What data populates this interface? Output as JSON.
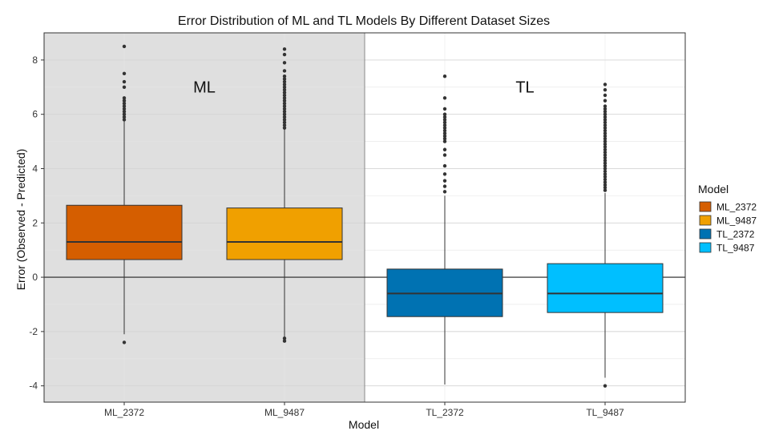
{
  "chart_data": {
    "type": "box",
    "title": "Error Distribution of ML and TL Models By Different Dataset Sizes",
    "xlabel": "Model",
    "ylabel": "Error (Observed - Predicted)",
    "ylim": [
      -4.6,
      9.0
    ],
    "yticks": [
      -4,
      -2,
      0,
      2,
      4,
      6,
      8
    ],
    "categories": [
      "ML_2372",
      "ML_9487",
      "TL_2372",
      "TL_9487"
    ],
    "panels": [
      {
        "label": "ML",
        "categories": [
          "ML_2372",
          "ML_9487"
        ],
        "shaded": true
      },
      {
        "label": "TL",
        "categories": [
          "TL_2372",
          "TL_9487"
        ],
        "shaded": false
      }
    ],
    "reference_line": 0,
    "series": [
      {
        "name": "ML_2372",
        "color": "#D55E00",
        "q1": 0.65,
        "median": 1.3,
        "q3": 2.65,
        "whisker_low": -2.1,
        "whisker_high": 5.75,
        "outliers": [
          -2.4,
          5.8,
          5.9,
          6.0,
          6.1,
          6.2,
          6.3,
          6.4,
          6.5,
          6.6,
          7.0,
          7.2,
          7.5,
          8.5
        ]
      },
      {
        "name": "ML_9487",
        "color": "#F0A000",
        "q1": 0.65,
        "median": 1.3,
        "q3": 2.55,
        "whisker_low": -2.2,
        "whisker_high": 5.45,
        "outliers": [
          -2.25,
          -2.35,
          5.5,
          5.6,
          5.7,
          5.8,
          5.9,
          6.0,
          6.1,
          6.2,
          6.3,
          6.4,
          6.5,
          6.6,
          6.7,
          6.8,
          6.9,
          7.0,
          7.1,
          7.2,
          7.3,
          7.4,
          7.6,
          7.9,
          8.2,
          8.4
        ]
      },
      {
        "name": "TL_2372",
        "color": "#0072B2",
        "q1": -1.45,
        "median": -0.6,
        "q3": 0.3,
        "whisker_low": -3.95,
        "whisker_high": 3.0,
        "outliers": [
          3.15,
          3.35,
          3.55,
          3.8,
          4.1,
          4.5,
          4.7,
          5.0,
          5.1,
          5.2,
          5.3,
          5.4,
          5.5,
          5.6,
          5.7,
          5.8,
          5.9,
          6.0,
          6.2,
          6.6,
          7.4
        ]
      },
      {
        "name": "TL_9487",
        "color": "#00BFFF",
        "q1": -1.3,
        "median": -0.6,
        "q3": 0.5,
        "whisker_low": -3.7,
        "whisker_high": 3.1,
        "outliers": [
          -4.0,
          3.2,
          3.3,
          3.4,
          3.5,
          3.6,
          3.7,
          3.8,
          3.9,
          4.0,
          4.1,
          4.2,
          4.3,
          4.4,
          4.5,
          4.6,
          4.7,
          4.8,
          4.9,
          5.0,
          5.1,
          5.2,
          5.3,
          5.4,
          5.5,
          5.6,
          5.7,
          5.8,
          5.9,
          6.0,
          6.1,
          6.2,
          6.3,
          6.5,
          6.7,
          6.9,
          7.1
        ]
      }
    ],
    "legend": {
      "title": "Model",
      "placement": "right",
      "entries": [
        "ML_2372",
        "ML_9487",
        "TL_2372",
        "TL_9487"
      ]
    },
    "grid": true,
    "colors": {
      "panel_shade": "#DFDFDF",
      "grid": "#EBEBEB",
      "frame": "#333333"
    }
  }
}
